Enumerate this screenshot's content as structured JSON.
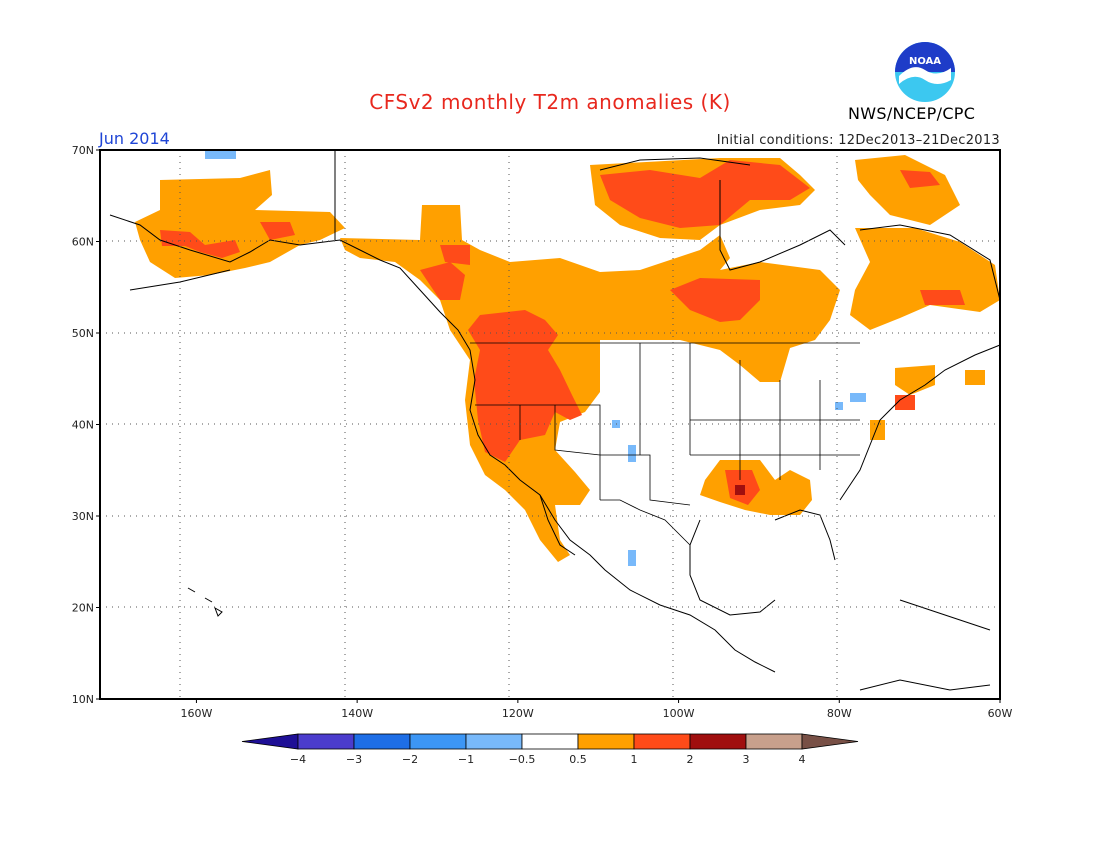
{
  "title": "CFSv2 monthly T2m anomalies (K)",
  "valid_month": "Jun 2014",
  "initial_conditions": "Initial conditions: 12Dec2013–21Dec2013",
  "agency": "NWS/NCEP/CPC",
  "logo_text": "NOAA",
  "map": {
    "lon_range": [
      -172,
      -60
    ],
    "lat_range": [
      10,
      70
    ],
    "lat_ticks": [
      {
        "value": 70,
        "label": "70N"
      },
      {
        "value": 60,
        "label": "60N"
      },
      {
        "value": 50,
        "label": "50N"
      },
      {
        "value": 40,
        "label": "40N"
      },
      {
        "value": 30,
        "label": "30N"
      },
      {
        "value": 20,
        "label": "20N"
      },
      {
        "value": 10,
        "label": "10N"
      }
    ],
    "lon_ticks": [
      {
        "value": -160,
        "label": "160W"
      },
      {
        "value": -140,
        "label": "140W"
      },
      {
        "value": -120,
        "label": "120W"
      },
      {
        "value": -100,
        "label": "100W"
      },
      {
        "value": -80,
        "label": "80W"
      },
      {
        "value": -60,
        "label": "60W"
      }
    ],
    "grid": "dotted"
  },
  "colorbar": {
    "labels": [
      "−4",
      "−3",
      "−2",
      "−1",
      "−0.5",
      "0.5",
      "1",
      "2",
      "3",
      "4"
    ],
    "colors": [
      "#1e0f96",
      "#4b3ccd",
      "#1e6ee6",
      "#3c96f5",
      "#78b9fa",
      "#ffffff",
      "#ffa000",
      "#ff4b19",
      "#a00f0f",
      "#c8a08c",
      "#785046"
    ]
  },
  "anomaly_colors": {
    "warm_05_1": "#ffa000",
    "warm_1_2": "#ff4b19",
    "warm_2_3": "#a00f0f",
    "cool_05_1": "#78b9fa"
  }
}
